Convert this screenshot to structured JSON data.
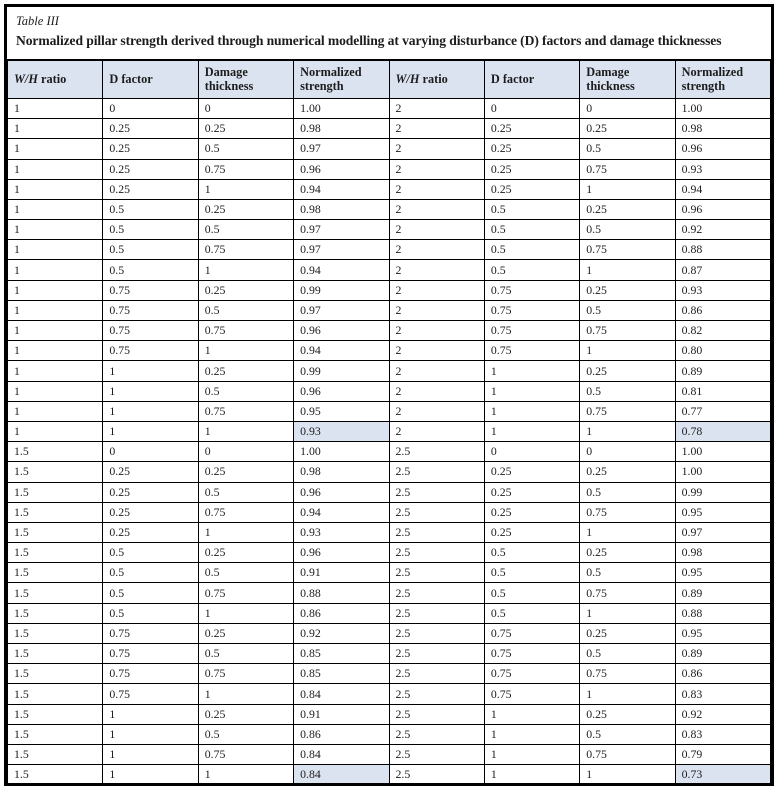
{
  "table": {
    "label": "Table III",
    "caption": "Normalized pillar strength derived through numerical modelling at varying disturbance (D) factors and damage thicknesses",
    "headers": [
      [
        {
          "t": "W/H",
          "i": true
        },
        {
          "t": " ratio",
          "i": false
        }
      ],
      [
        {
          "t": "D factor",
          "i": false
        }
      ],
      [
        {
          "t": "Damage thickness",
          "i": false
        }
      ],
      [
        {
          "t": "Normalized strength",
          "i": false
        }
      ],
      [
        {
          "t": "W/H",
          "i": true
        },
        {
          "t": " ratio",
          "i": false
        }
      ],
      [
        {
          "t": "D factor",
          "i": false
        }
      ],
      [
        {
          "t": "Damage thickness",
          "i": false
        }
      ],
      [
        {
          "t": "Normalized strength",
          "i": false
        }
      ]
    ],
    "rows": [
      [
        "1",
        "0",
        "0",
        "1.00",
        "2",
        "0",
        "0",
        "1.00"
      ],
      [
        "1",
        "0.25",
        "0.25",
        "0.98",
        "2",
        "0.25",
        "0.25",
        "0.98"
      ],
      [
        "1",
        "0.25",
        "0.5",
        "0.97",
        "2",
        "0.25",
        "0.5",
        "0.96"
      ],
      [
        "1",
        "0.25",
        "0.75",
        "0.96",
        "2",
        "0.25",
        "0.75",
        "0.93"
      ],
      [
        "1",
        "0.25",
        "1",
        "0.94",
        "2",
        "0.25",
        "1",
        "0.94"
      ],
      [
        "1",
        "0.5",
        "0.25",
        "0.98",
        "2",
        "0.5",
        "0.25",
        "0.96"
      ],
      [
        "1",
        "0.5",
        "0.5",
        "0.97",
        "2",
        "0.5",
        "0.5",
        "0.92"
      ],
      [
        "1",
        "0.5",
        "0.75",
        "0.97",
        "2",
        "0.5",
        "0.75",
        "0.88"
      ],
      [
        "1",
        "0.5",
        "1",
        "0.94",
        "2",
        "0.5",
        "1",
        "0.87"
      ],
      [
        "1",
        "0.75",
        "0.25",
        "0.99",
        "2",
        "0.75",
        "0.25",
        "0.93"
      ],
      [
        "1",
        "0.75",
        "0.5",
        "0.97",
        "2",
        "0.75",
        "0.5",
        "0.86"
      ],
      [
        "1",
        "0.75",
        "0.75",
        "0.96",
        "2",
        "0.75",
        "0.75",
        "0.82"
      ],
      [
        "1",
        "0.75",
        "1",
        "0.94",
        "2",
        "0.75",
        "1",
        "0.80"
      ],
      [
        "1",
        "1",
        "0.25",
        "0.99",
        "2",
        "1",
        "0.25",
        "0.89"
      ],
      [
        "1",
        "1",
        "0.5",
        "0.96",
        "2",
        "1",
        "0.5",
        "0.81"
      ],
      [
        "1",
        "1",
        "0.75",
        "0.95",
        "2",
        "1",
        "0.75",
        "0.77"
      ],
      [
        "1",
        "1",
        "1",
        "0.93",
        "2",
        "1",
        "1",
        "0.78"
      ],
      [
        "1.5",
        "0",
        "0",
        "1.00",
        "2.5",
        "0",
        "0",
        "1.00"
      ],
      [
        "1.5",
        "0.25",
        "0.25",
        "0.98",
        "2.5",
        "0.25",
        "0.25",
        "1.00"
      ],
      [
        "1.5",
        "0.25",
        "0.5",
        "0.96",
        "2.5",
        "0.25",
        "0.5",
        "0.99"
      ],
      [
        "1.5",
        "0.25",
        "0.75",
        "0.94",
        "2.5",
        "0.25",
        "0.75",
        "0.95"
      ],
      [
        "1.5",
        "0.25",
        "1",
        "0.93",
        "2.5",
        "0.25",
        "1",
        "0.97"
      ],
      [
        "1.5",
        "0.5",
        "0.25",
        "0.96",
        "2.5",
        "0.5",
        "0.25",
        "0.98"
      ],
      [
        "1.5",
        "0.5",
        "0.5",
        "0.91",
        "2.5",
        "0.5",
        "0.5",
        "0.95"
      ],
      [
        "1.5",
        "0.5",
        "0.75",
        "0.88",
        "2.5",
        "0.5",
        "0.75",
        "0.89"
      ],
      [
        "1.5",
        "0.5",
        "1",
        "0.86",
        "2.5",
        "0.5",
        "1",
        "0.88"
      ],
      [
        "1.5",
        "0.75",
        "0.25",
        "0.92",
        "2.5",
        "0.75",
        "0.25",
        "0.95"
      ],
      [
        "1.5",
        "0.75",
        "0.5",
        "0.85",
        "2.5",
        "0.75",
        "0.5",
        "0.89"
      ],
      [
        "1.5",
        "0.75",
        "0.75",
        "0.85",
        "2.5",
        "0.75",
        "0.75",
        "0.86"
      ],
      [
        "1.5",
        "0.75",
        "1",
        "0.84",
        "2.5",
        "0.75",
        "1",
        "0.83"
      ],
      [
        "1.5",
        "1",
        "0.25",
        "0.91",
        "2.5",
        "1",
        "0.25",
        "0.92"
      ],
      [
        "1.5",
        "1",
        "0.5",
        "0.86",
        "2.5",
        "1",
        "0.5",
        "0.83"
      ],
      [
        "1.5",
        "1",
        "0.75",
        "0.84",
        "2.5",
        "1",
        "0.75",
        "0.79"
      ],
      [
        "1.5",
        "1",
        "1",
        "0.84",
        "2.5",
        "1",
        "1",
        "0.73"
      ]
    ],
    "highlighted_cells": [
      [
        16,
        3
      ],
      [
        16,
        7
      ],
      [
        33,
        3
      ],
      [
        33,
        7
      ]
    ],
    "colors": {
      "header_bg": "#dbe3f1",
      "highlight_bg": "#dbe3f1",
      "border": "#000000",
      "text": "#1c1c1c"
    }
  }
}
